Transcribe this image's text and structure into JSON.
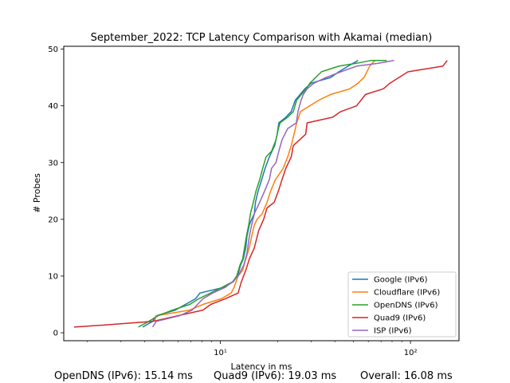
{
  "chart_data": {
    "type": "line",
    "title": "September_2022: TCP Latency Comparison with Akamai (median)",
    "xlabel": "Latency in ms",
    "ylabel": "# Probes",
    "xscale": "log",
    "xlim": [
      1.5,
      180
    ],
    "ylim": [
      -1.4,
      50.5
    ],
    "xticks": [
      {
        "value": 10,
        "label": "10¹"
      },
      {
        "value": 100,
        "label": "10²"
      }
    ],
    "yticks": [
      0,
      10,
      20,
      30,
      40,
      50
    ],
    "grid": false,
    "legend_position": "lower-right",
    "series": [
      {
        "name": "Google (IPv6)",
        "color": "#1f77b4",
        "points": [
          [
            3.9,
            1
          ],
          [
            4.4,
            2
          ],
          [
            4.6,
            3
          ],
          [
            5.8,
            4
          ],
          [
            7.4,
            6
          ],
          [
            7.8,
            7
          ],
          [
            10.4,
            8
          ],
          [
            11.7,
            9
          ],
          [
            12.3,
            10
          ],
          [
            12.8,
            12
          ],
          [
            13.2,
            13
          ],
          [
            13.6,
            15
          ],
          [
            13.8,
            17
          ],
          [
            14.2,
            19
          ],
          [
            14.6,
            20
          ],
          [
            15.1,
            21
          ],
          [
            15.3,
            23
          ],
          [
            15.8,
            25
          ],
          [
            16.5,
            27
          ],
          [
            17.2,
            29
          ],
          [
            18.1,
            31
          ],
          [
            19.3,
            33
          ],
          [
            19.9,
            35
          ],
          [
            20.3,
            37
          ],
          [
            22.1,
            38
          ],
          [
            23.6,
            39
          ],
          [
            24.8,
            41
          ],
          [
            26.3,
            42
          ],
          [
            27.8,
            43
          ],
          [
            30.1,
            44
          ],
          [
            38,
            45
          ],
          [
            42,
            46
          ],
          [
            47,
            47
          ],
          [
            53,
            48
          ]
        ]
      },
      {
        "name": "Cloudflare (IPv6)",
        "color": "#ff7f0e",
        "points": [
          [
            4.5,
            2
          ],
          [
            4.6,
            3
          ],
          [
            6.9,
            4
          ],
          [
            8.1,
            5
          ],
          [
            10.1,
            6
          ],
          [
            11.4,
            7
          ],
          [
            11.8,
            8
          ],
          [
            12.4,
            10
          ],
          [
            13.1,
            11
          ],
          [
            13.6,
            13
          ],
          [
            14.2,
            15
          ],
          [
            14.6,
            17
          ],
          [
            15.1,
            19
          ],
          [
            15.6,
            20
          ],
          [
            16.6,
            21
          ],
          [
            17.6,
            23
          ],
          [
            18.4,
            25
          ],
          [
            19.5,
            27
          ],
          [
            21.4,
            29
          ],
          [
            22.6,
            31
          ],
          [
            23.6,
            33
          ],
          [
            24.4,
            35
          ],
          [
            25.2,
            37
          ],
          [
            26.4,
            39
          ],
          [
            33,
            41
          ],
          [
            38,
            42
          ],
          [
            48,
            43
          ],
          [
            53,
            44
          ],
          [
            57,
            45
          ],
          [
            61,
            47
          ],
          [
            65,
            48
          ]
        ]
      },
      {
        "name": "OpenDNS (IPv6)",
        "color": "#2ca02c",
        "points": [
          [
            3.7,
            1
          ],
          [
            4.2,
            2
          ],
          [
            4.7,
            3
          ],
          [
            5.6,
            4
          ],
          [
            6.9,
            5
          ],
          [
            7.7,
            6
          ],
          [
            10.2,
            8
          ],
          [
            11.6,
            9
          ],
          [
            12.2,
            10
          ],
          [
            12.7,
            12
          ],
          [
            13.1,
            13
          ],
          [
            13.4,
            15
          ],
          [
            13.7,
            17
          ],
          [
            14.1,
            19
          ],
          [
            14.4,
            21
          ],
          [
            14.9,
            23
          ],
          [
            15.4,
            25
          ],
          [
            16.1,
            27
          ],
          [
            16.7,
            29
          ],
          [
            17.4,
            31
          ],
          [
            18.6,
            32
          ],
          [
            19.6,
            34
          ],
          [
            20.2,
            36
          ],
          [
            20.6,
            37
          ],
          [
            22.6,
            38
          ],
          [
            24.2,
            39
          ],
          [
            25.2,
            41
          ],
          [
            28.3,
            43
          ],
          [
            29.6,
            44
          ],
          [
            34,
            46
          ],
          [
            42,
            47
          ],
          [
            52,
            47.5
          ],
          [
            62,
            48
          ],
          [
            75,
            48
          ]
        ]
      },
      {
        "name": "Quad9 (IPv6)",
        "color": "#d62728",
        "points": [
          [
            1.7,
            1
          ],
          [
            2.3,
            1.3
          ],
          [
            4.4,
            2
          ],
          [
            8.1,
            4
          ],
          [
            8.9,
            5
          ],
          [
            10.6,
            6
          ],
          [
            12.4,
            7
          ],
          [
            12.9,
            9
          ],
          [
            13.6,
            11
          ],
          [
            14.2,
            13
          ],
          [
            15.1,
            15
          ],
          [
            15.9,
            18
          ],
          [
            16.9,
            20
          ],
          [
            17.6,
            22
          ],
          [
            19.2,
            23
          ],
          [
            20.2,
            25
          ],
          [
            21.1,
            27
          ],
          [
            22.1,
            29
          ],
          [
            23.6,
            31
          ],
          [
            24.2,
            33
          ],
          [
            26.1,
            34
          ],
          [
            28.1,
            35
          ],
          [
            28.6,
            37
          ],
          [
            39,
            38
          ],
          [
            43,
            39
          ],
          [
            52,
            40
          ],
          [
            58,
            42
          ],
          [
            72,
            43
          ],
          [
            78,
            44
          ],
          [
            87,
            45
          ],
          [
            97,
            46
          ],
          [
            148,
            47
          ],
          [
            156,
            48
          ]
        ]
      },
      {
        "name": "ISP (IPv6)",
        "color": "#9467bd",
        "points": [
          [
            4.4,
            1
          ],
          [
            4.6,
            2
          ],
          [
            6.1,
            3
          ],
          [
            7.1,
            4
          ],
          [
            8.1,
            6
          ],
          [
            9.1,
            7
          ],
          [
            10.6,
            8
          ],
          [
            11.6,
            9
          ],
          [
            12.4,
            10
          ],
          [
            13.3,
            12
          ],
          [
            13.8,
            14
          ],
          [
            14.2,
            17
          ],
          [
            14.6,
            19
          ],
          [
            15.1,
            21
          ],
          [
            16.1,
            23
          ],
          [
            17.1,
            25
          ],
          [
            18.1,
            27
          ],
          [
            18.6,
            29
          ],
          [
            19.6,
            30
          ],
          [
            20.3,
            32
          ],
          [
            21.1,
            34
          ],
          [
            22.6,
            36
          ],
          [
            25.1,
            37
          ],
          [
            25.6,
            39
          ],
          [
            26.6,
            41
          ],
          [
            27.3,
            42
          ],
          [
            28.6,
            43
          ],
          [
            31.1,
            44
          ],
          [
            36,
            45
          ],
          [
            43,
            46
          ],
          [
            52,
            47
          ],
          [
            68,
            47.5
          ],
          [
            82,
            48
          ]
        ]
      }
    ]
  },
  "footer": {
    "opendns": "OpenDNS (IPv6): 15.14 ms",
    "quad9": "Quad9 (IPv6): 19.03 ms",
    "overall": "Overall: 16.08 ms"
  }
}
